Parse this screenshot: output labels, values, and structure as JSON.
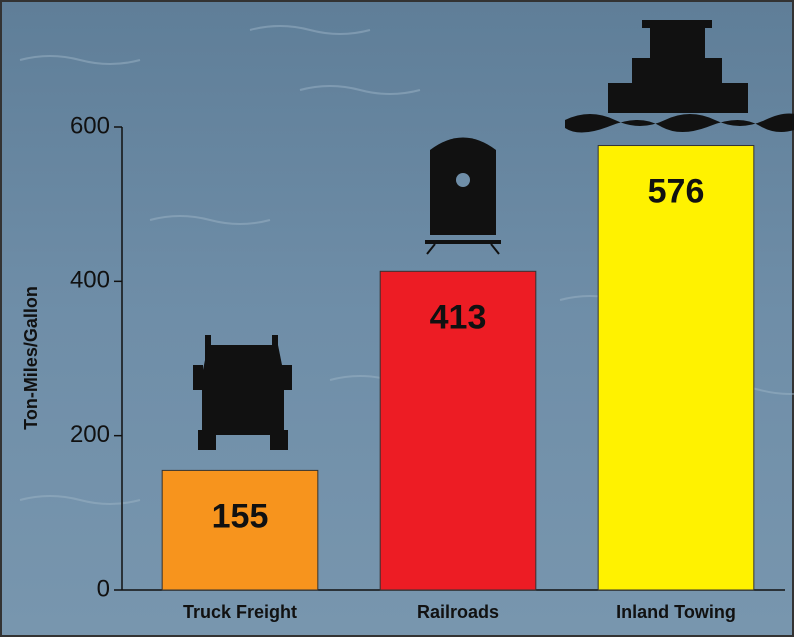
{
  "chart_data": {
    "type": "bar",
    "y_label": "Ton-Miles/Gallon",
    "categories": [
      "Truck Freight",
      "Railroads",
      "Inland Towing"
    ],
    "values": [
      155,
      413,
      576
    ],
    "colors": [
      "#f7941d",
      "#ed1c24",
      "#fff200"
    ],
    "ylim": [
      0,
      600
    ],
    "yticks": [
      0,
      200,
      400,
      600
    ]
  }
}
